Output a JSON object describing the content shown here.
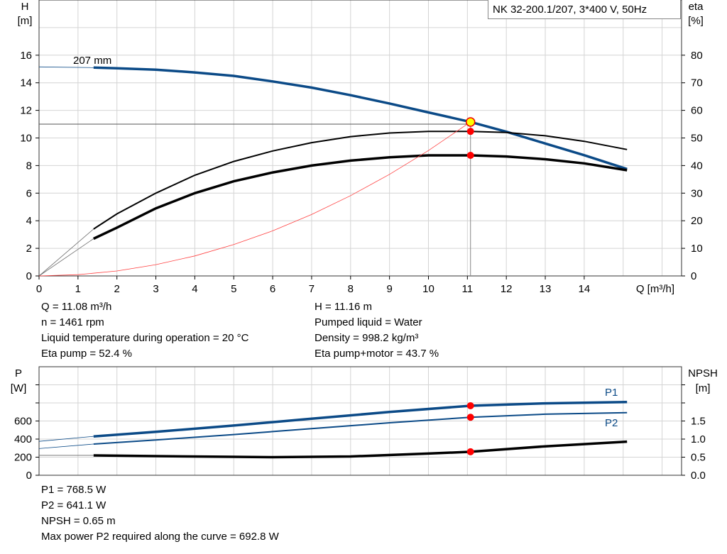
{
  "title": "NK 32-200.1/207, 3*400 V, 50Hz",
  "chart_data": [
    {
      "type": "line",
      "name": "head-efficiency",
      "ylabel_left": [
        "H",
        "[m]"
      ],
      "ylabel_right": [
        "eta",
        "[%]"
      ],
      "xlabel": "Q [m³/h]",
      "xlim": [
        0,
        16.5
      ],
      "ylim": [
        0,
        20
      ],
      "ylim_right": [
        0,
        100
      ],
      "x_ticks": [
        0,
        1,
        2,
        3,
        4,
        5,
        6,
        7,
        8,
        9,
        10,
        11,
        12,
        13,
        14
      ],
      "y_ticks": [
        0,
        2,
        4,
        6,
        8,
        10,
        12,
        14,
        16
      ],
      "y_ticks_right": [
        0,
        10,
        20,
        30,
        40,
        50,
        60,
        70,
        80
      ],
      "grid": true,
      "curve_label": "207 mm",
      "colors": {
        "head": "#0b4a87",
        "eta": "#000000",
        "system": "#ff4040",
        "point": "#ff0000",
        "op_point": "#ffff00"
      },
      "series": [
        {
          "key": "head",
          "axis": "left",
          "x": [
            1.4,
            2,
            3,
            4,
            5,
            6,
            7,
            8,
            9,
            10,
            11.08,
            12,
            13,
            14,
            15.1
          ],
          "y": [
            15.1,
            15.05,
            14.95,
            14.75,
            14.5,
            14.1,
            13.65,
            13.1,
            12.5,
            11.85,
            11.16,
            10.45,
            9.6,
            8.75,
            7.75
          ]
        },
        {
          "key": "eta_pump",
          "axis": "right",
          "x": [
            1.4,
            2,
            3,
            4,
            5,
            6,
            7,
            8,
            9,
            10,
            11.08,
            12,
            13,
            14,
            15.1
          ],
          "y": [
            17,
            22.5,
            30,
            36.5,
            41.5,
            45.3,
            48.3,
            50.5,
            51.8,
            52.4,
            52.4,
            52,
            50.8,
            48.8,
            45.8
          ]
        },
        {
          "key": "eta_pump_motor",
          "axis": "right",
          "x": [
            1.4,
            2,
            3,
            4,
            5,
            6,
            7,
            8,
            9,
            10,
            11.08,
            12,
            13,
            14,
            15.1
          ],
          "y": [
            13.5,
            17.5,
            24.5,
            30,
            34.3,
            37.5,
            40,
            41.8,
            43,
            43.7,
            43.7,
            43.3,
            42.3,
            40.8,
            38.3
          ]
        },
        {
          "key": "system",
          "axis": "left",
          "x": [
            0,
            1,
            2,
            3,
            4,
            5,
            6,
            7,
            8,
            9,
            10,
            11.08
          ],
          "y": [
            0,
            0.09,
            0.36,
            0.82,
            1.45,
            2.27,
            3.27,
            4.45,
            5.82,
            7.36,
            9.09,
            11.16
          ]
        }
      ],
      "operating_point": {
        "Q": 11.08,
        "H": 11.16,
        "eta_pump": 52.4,
        "eta_pump_motor": 43.7
      }
    },
    {
      "type": "line",
      "name": "power-npsh",
      "ylabel_left": [
        "P",
        "[W]"
      ],
      "ylabel_right": [
        "NPSH",
        "[m]"
      ],
      "xlim": [
        0,
        16.5
      ],
      "ylim": [
        0,
        1200
      ],
      "ylim_right": [
        0,
        3
      ],
      "y_ticks": [
        0,
        200,
        400,
        600
      ],
      "y_ticks_right": [
        "0.0",
        "0.5",
        "1.0",
        "1.5"
      ],
      "grid": true,
      "series": [
        {
          "key": "P1",
          "name": "P1",
          "axis": "left",
          "x": [
            1.4,
            3,
            5,
            7,
            9,
            11.08,
            13,
            15.1
          ],
          "y": [
            430,
            480,
            550,
            625,
            700,
            768.5,
            795,
            810
          ]
        },
        {
          "key": "P2",
          "name": "P2",
          "axis": "left",
          "x": [
            1.4,
            3,
            5,
            7,
            9,
            11.08,
            13,
            15.1
          ],
          "y": [
            345,
            390,
            450,
            515,
            580,
            641.1,
            675,
            692.8
          ]
        },
        {
          "key": "NPSH",
          "axis": "right",
          "x": [
            1.4,
            3,
            5,
            6,
            8,
            10,
            11.08,
            13,
            15.1
          ],
          "y": [
            0.55,
            0.53,
            0.51,
            0.5,
            0.52,
            0.6,
            0.65,
            0.8,
            0.93
          ]
        }
      ]
    }
  ],
  "info_top_left": [
    "Q = 11.08 m³/h",
    "n = 1461 rpm",
    "Liquid temperature during operation = 20 °C",
    "Eta pump = 52.4 %"
  ],
  "info_top_right": [
    "H = 11.16 m",
    "Pumped liquid = Water",
    "Density = 998.2 kg/m³",
    "Eta pump+motor = 43.7 %"
  ],
  "info_bottom": [
    "P1 = 768.5 W",
    "P2 = 641.1 W",
    "NPSH = 0.65 m",
    "Max power P2 required along the curve = 692.8 W"
  ]
}
